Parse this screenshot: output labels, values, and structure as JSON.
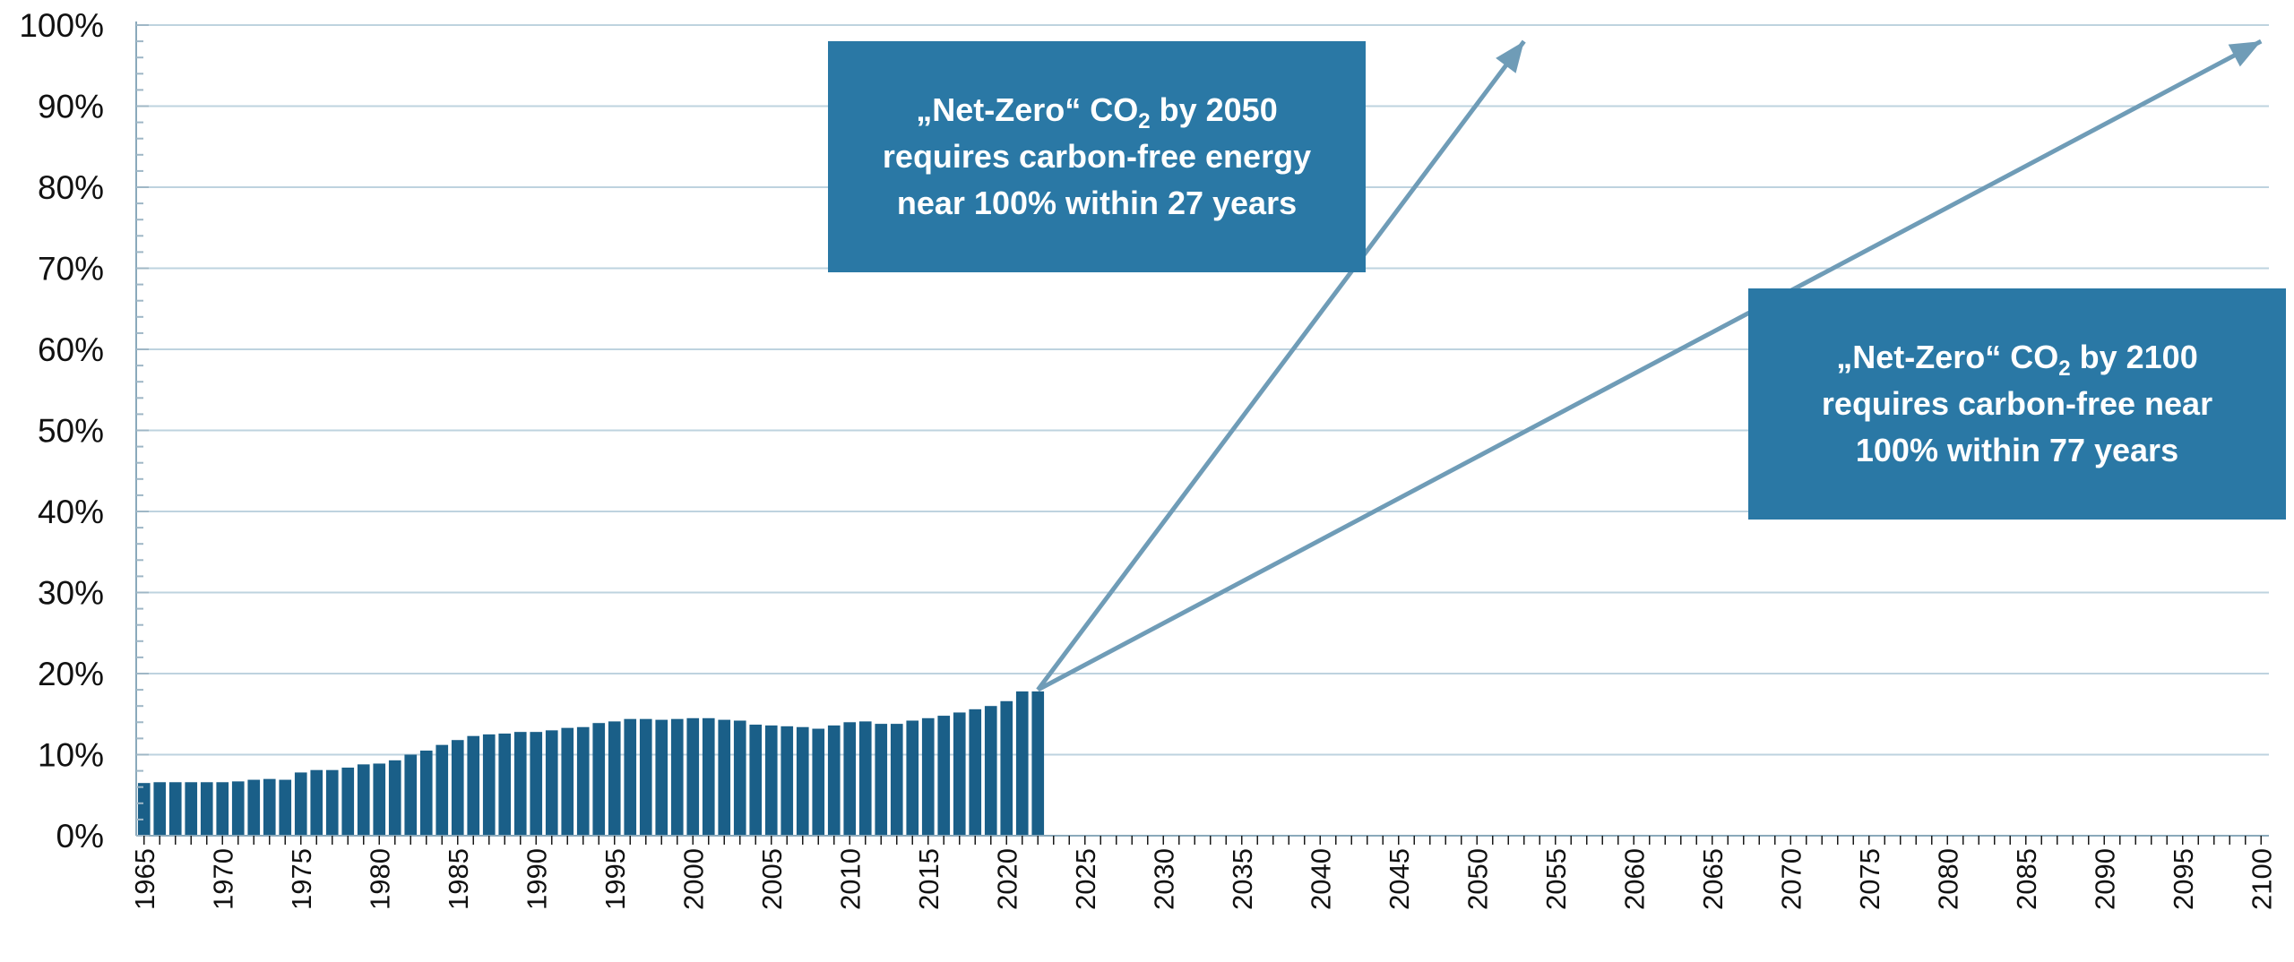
{
  "chart_data": {
    "type": "bar",
    "title": "",
    "xlabel": "",
    "ylabel": "",
    "ylim": [
      0,
      100
    ],
    "y_ticks": [
      "0%",
      "10%",
      "20%",
      "30%",
      "40%",
      "50%",
      "60%",
      "70%",
      "80%",
      "90%",
      "100%"
    ],
    "x_range": [
      1965,
      2100
    ],
    "x_tick_labels": [
      "1965",
      "1970",
      "1975",
      "1980",
      "1985",
      "1990",
      "1995",
      "2000",
      "2005",
      "2010",
      "2015",
      "2020",
      "2025",
      "2030",
      "2035",
      "2040",
      "2045",
      "2050",
      "2055",
      "2060",
      "2065",
      "2070",
      "2075",
      "2080",
      "2085",
      "2090",
      "2095",
      "2100"
    ],
    "grid": true,
    "legend": "none",
    "bar_color": "#1a5f88",
    "years": [
      1965,
      1966,
      1967,
      1968,
      1969,
      1970,
      1971,
      1972,
      1973,
      1974,
      1975,
      1976,
      1977,
      1978,
      1979,
      1980,
      1981,
      1982,
      1983,
      1984,
      1985,
      1986,
      1987,
      1988,
      1989,
      1990,
      1991,
      1992,
      1993,
      1994,
      1995,
      1996,
      1997,
      1998,
      1999,
      2000,
      2001,
      2002,
      2003,
      2004,
      2005,
      2006,
      2007,
      2008,
      2009,
      2010,
      2011,
      2012,
      2013,
      2014,
      2015,
      2016,
      2017,
      2018,
      2019,
      2020,
      2021,
      2022
    ],
    "values": [
      6.5,
      6.6,
      6.6,
      6.6,
      6.6,
      6.6,
      6.7,
      6.9,
      7.0,
      6.9,
      7.8,
      8.1,
      8.1,
      8.4,
      8.8,
      8.9,
      9.3,
      10.0,
      10.5,
      11.2,
      11.8,
      12.3,
      12.5,
      12.6,
      12.8,
      12.8,
      13.0,
      13.3,
      13.4,
      13.9,
      14.1,
      14.4,
      14.4,
      14.3,
      14.4,
      14.5,
      14.5,
      14.3,
      14.2,
      13.7,
      13.6,
      13.5,
      13.4,
      13.2,
      13.6,
      14.0,
      14.1,
      13.8,
      13.8,
      14.2,
      14.5,
      14.8,
      15.2,
      15.6,
      16.0,
      16.6,
      17.8,
      17.8
    ],
    "arrow_color": "#6f9cb7",
    "projections": [
      {
        "from": [
          2022,
          18
        ],
        "to": [
          2053,
          98
        ]
      },
      {
        "from": [
          2022,
          18
        ],
        "to": [
          2100,
          98
        ]
      }
    ],
    "annotations": [
      {
        "id": "callout_2050",
        "lines": [
          [
            "„Net-Zero“ CO",
            "2",
            " by 2050"
          ],
          [
            "requires carbon-free energy"
          ],
          [
            "near 100% within 27 years"
          ]
        ]
      },
      {
        "id": "callout_2100",
        "lines": [
          [
            "„Net-Zero“ CO",
            "2",
            " by 2100"
          ],
          [
            "requires carbon-free near"
          ],
          [
            "100% within 77 years"
          ]
        ]
      }
    ],
    "callout_color": "#2a78a5"
  }
}
